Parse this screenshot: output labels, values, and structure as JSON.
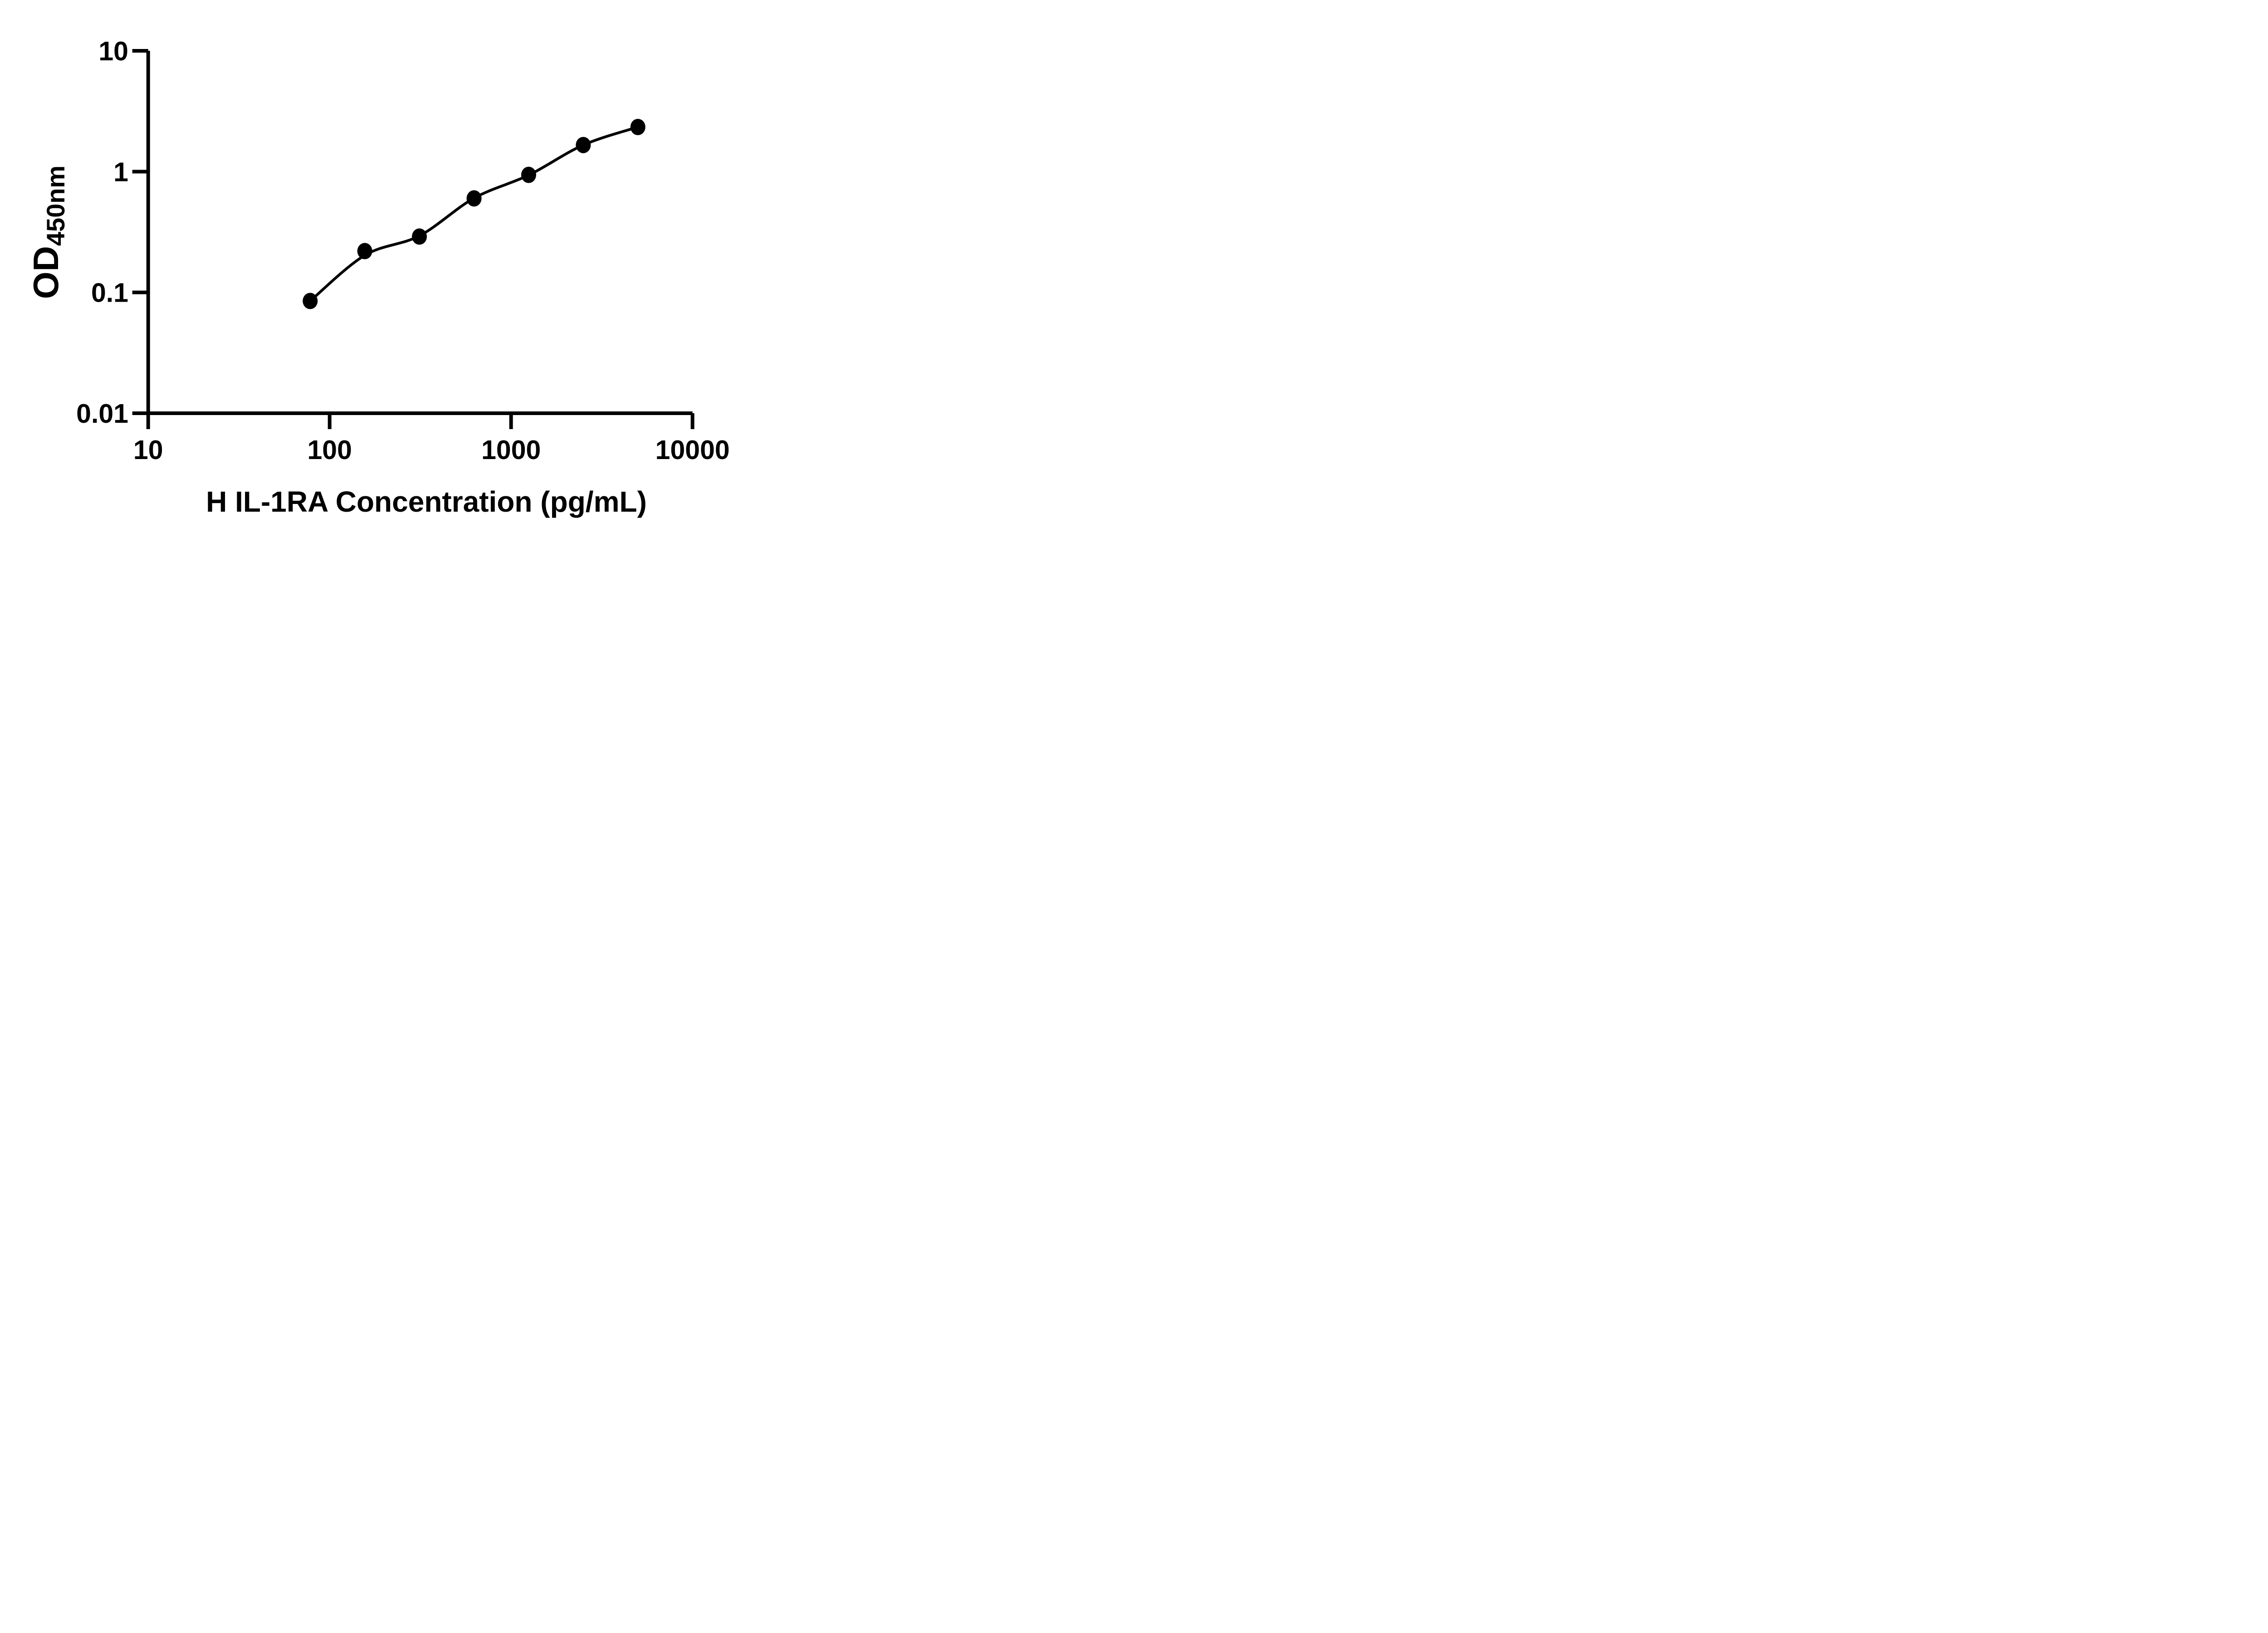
{
  "figure": {
    "background_color": "#ffffff",
    "ink_color": "#000000"
  },
  "chart_data": {
    "type": "scatter",
    "title": "",
    "xlabel": "H IL-1RA Concentration (pg/mL)",
    "ylabel_main": "OD",
    "ylabel_sub": "450nm",
    "x_scale": "log10",
    "y_scale": "log10",
    "xlim": [
      10,
      10000
    ],
    "ylim": [
      0.01,
      10
    ],
    "grid": false,
    "legend_position": "none",
    "x_ticks": [
      10,
      100,
      1000,
      10000
    ],
    "x_tick_labels": [
      "10",
      "100",
      "1000",
      "10000"
    ],
    "y_ticks": [
      10,
      1,
      0.1,
      0.01
    ],
    "y_tick_labels": [
      "10",
      "1",
      "0.1",
      "0.01"
    ],
    "series": [
      {
        "marker": "filled-circle",
        "color": "#000000",
        "points": [
          {
            "x": 78.13,
            "y": 0.085
          },
          {
            "x": 156.25,
            "y": 0.22
          },
          {
            "x": 312.5,
            "y": 0.29
          },
          {
            "x": 625,
            "y": 0.6
          },
          {
            "x": 1250,
            "y": 0.94
          },
          {
            "x": 2500,
            "y": 1.66
          },
          {
            "x": 5000,
            "y": 2.34
          }
        ]
      }
    ],
    "fit_curve": {
      "style": "smooth standard-curve fit through points",
      "color": "#000000",
      "knots": [
        [
          78.13,
          0.085
        ],
        [
          156.25,
          0.203
        ],
        [
          312.5,
          0.294
        ],
        [
          625,
          0.603
        ],
        [
          1250,
          0.935
        ],
        [
          2500,
          1.66
        ],
        [
          5000,
          2.34
        ]
      ]
    }
  }
}
